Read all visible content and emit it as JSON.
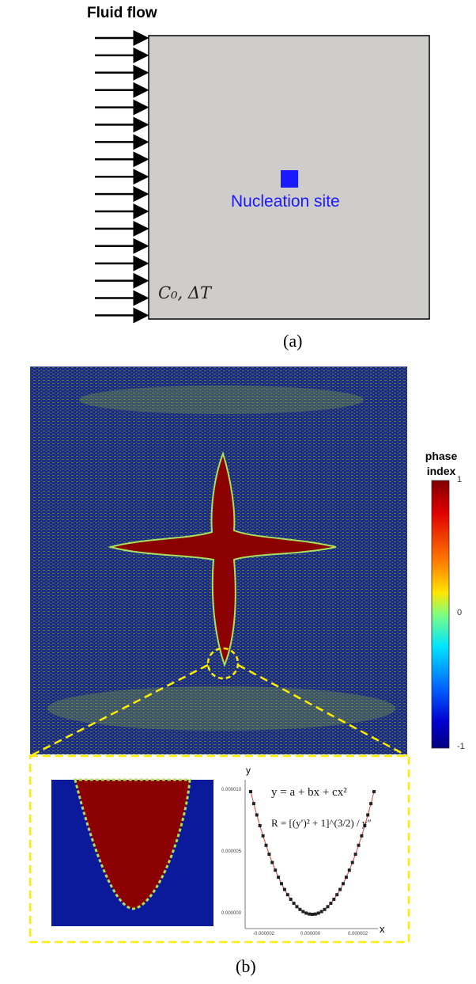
{
  "panel_a": {
    "flow_label": "Fluid flow",
    "nucleation_label": "Nucleation site",
    "conditions_label": "C₀, ΔT",
    "caption": "(a)",
    "domain_color": "#cfcdcb",
    "nucleation_color": "#1a1aff"
  },
  "panel_b": {
    "caption": "(b)",
    "colorbar": {
      "title_line1": "phase",
      "title_line2": "index",
      "ticks": [
        "1",
        "0",
        "-1"
      ],
      "colormap": "jet"
    },
    "highlight_color": "#ffee00",
    "fit_chart": {
      "xlabel": "x",
      "ylabel": "y",
      "equation_fit": "y = a + bx + cx²",
      "equation_radius": "R = [(y′)² + 1]^(3/2) / y″",
      "x_ticks": [
        "-0.000002",
        "0.000000",
        "0.000002"
      ],
      "y_ticks": [
        "0.000010",
        "0.000005",
        "0.000000"
      ]
    }
  }
}
